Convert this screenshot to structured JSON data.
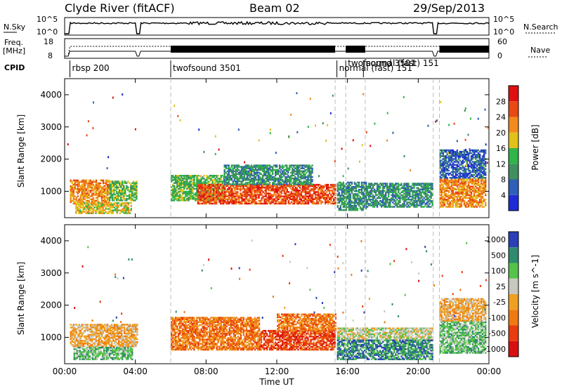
{
  "header": {
    "station": "Clyde River (fitACF)",
    "beam": "Beam 02",
    "date": "29/Sep/2013"
  },
  "top_panels": {
    "nsky_label": "N.Sky",
    "nsky_ticks": [
      "10^5",
      "10^0"
    ],
    "nsearch_label": "N.Search",
    "freq_label_1": "Freq.",
    "freq_label_2": "[MHz]",
    "freq_ticks": [
      "18",
      "8"
    ],
    "nave_label": "Nave",
    "nave_ticks": [
      "60",
      "0"
    ],
    "cpid_label": "CPID",
    "cpid_segments": [
      {
        "label": "rbsp 200",
        "start_hour": 0.3
      },
      {
        "label": "twofsound 3501",
        "start_hour": 6.0
      },
      {
        "label": "normal (fast) 151",
        "start_hour": 15.4
      },
      {
        "label": "twofsound 3501",
        "start_hour": 15.9
      },
      {
        "label": "normal (fast) 151",
        "start_hour": 16.9
      }
    ]
  },
  "colors": {
    "power_scale": [
      "#1f2bd6",
      "#2f5fb8",
      "#3f8f5f",
      "#2fb54a",
      "#e0c21a",
      "#f28a1c",
      "#e84a14",
      "#e01010"
    ],
    "velocity_scale": [
      "#2a3fb8",
      "#2f8a6e",
      "#55c24a",
      "#c8c8c0",
      "#f0a020",
      "#ee7a10",
      "#e83c10",
      "#d81010"
    ]
  },
  "chart_data": [
    {
      "type": "heatmap",
      "title": "",
      "xlabel": "",
      "ylabel": "Slant Range [km]",
      "y_ticks": [
        "1000",
        "2000",
        "3000",
        "4000"
      ],
      "x_ticks": [
        "00:00",
        "04:00",
        "08:00",
        "12:00",
        "16:00",
        "20:00",
        "00:00"
      ],
      "xlim": [
        0,
        24
      ],
      "ylim": [
        180,
        4500
      ],
      "colorbar_label": "Power [dB]",
      "colorbar_ticks": [
        "4",
        "8",
        "12",
        "16",
        "20",
        "24",
        "28"
      ],
      "color_range": [
        0,
        32
      ],
      "approx_bands": [
        {
          "x": [
            0.3,
            2.5
          ],
          "y": [
            600,
            1350
          ],
          "value": 22
        },
        {
          "x": [
            2.5,
            4.1
          ],
          "y": [
            700,
            1300
          ],
          "value": 14
        },
        {
          "x": [
            0.6,
            3.8
          ],
          "y": [
            300,
            650
          ],
          "value": 20
        },
        {
          "x": [
            6.0,
            9.0
          ],
          "y": [
            700,
            1500
          ],
          "value": 16
        },
        {
          "x": [
            7.5,
            15.3
          ],
          "y": [
            600,
            1200
          ],
          "value": 26
        },
        {
          "x": [
            9.0,
            14.0
          ],
          "y": [
            1200,
            1800
          ],
          "value": 12
        },
        {
          "x": [
            15.4,
            17.0
          ],
          "y": [
            400,
            1300
          ],
          "value": 10
        },
        {
          "x": [
            17.0,
            20.8
          ],
          "y": [
            500,
            1250
          ],
          "value": 10
        },
        {
          "x": [
            21.2,
            23.8
          ],
          "y": [
            500,
            1400
          ],
          "value": 24
        },
        {
          "x": [
            21.2,
            23.8
          ],
          "y": [
            1400,
            2300
          ],
          "value": 8
        }
      ]
    },
    {
      "type": "heatmap",
      "title": "",
      "xlabel": "Time UT",
      "ylabel": "Slant Range [km]",
      "y_ticks": [
        "1000",
        "2000",
        "3000",
        "4000"
      ],
      "x_ticks": [
        "00:00",
        "04:00",
        "08:00",
        "12:00",
        "16:00",
        "20:00",
        "00:00"
      ],
      "xlim": [
        0,
        24
      ],
      "ylim": [
        180,
        4500
      ],
      "colorbar_label": "Velocity [m s^-1]",
      "colorbar_ticks": [
        "1000",
        "500",
        "100",
        "25",
        "-25",
        "-100",
        "-500",
        "-1000"
      ],
      "approx_bands": [
        {
          "x": [
            0.3,
            4.1
          ],
          "y": [
            700,
            1400
          ],
          "value": -25
        },
        {
          "x": [
            0.5,
            3.8
          ],
          "y": [
            300,
            700
          ],
          "value": 100
        },
        {
          "x": [
            6.0,
            11.0
          ],
          "y": [
            600,
            1600
          ],
          "value": -100
        },
        {
          "x": [
            11.0,
            15.3
          ],
          "y": [
            600,
            1200
          ],
          "value": -250
        },
        {
          "x": [
            12.0,
            15.3
          ],
          "y": [
            1200,
            1700
          ],
          "value": -100
        },
        {
          "x": [
            15.4,
            20.8
          ],
          "y": [
            900,
            1300
          ],
          "value": 25
        },
        {
          "x": [
            15.4,
            20.8
          ],
          "y": [
            300,
            900
          ],
          "value": 300
        },
        {
          "x": [
            21.2,
            23.8
          ],
          "y": [
            500,
            1500
          ],
          "value": 200
        },
        {
          "x": [
            21.2,
            23.8
          ],
          "y": [
            1500,
            2200
          ],
          "value": -25
        }
      ]
    }
  ]
}
